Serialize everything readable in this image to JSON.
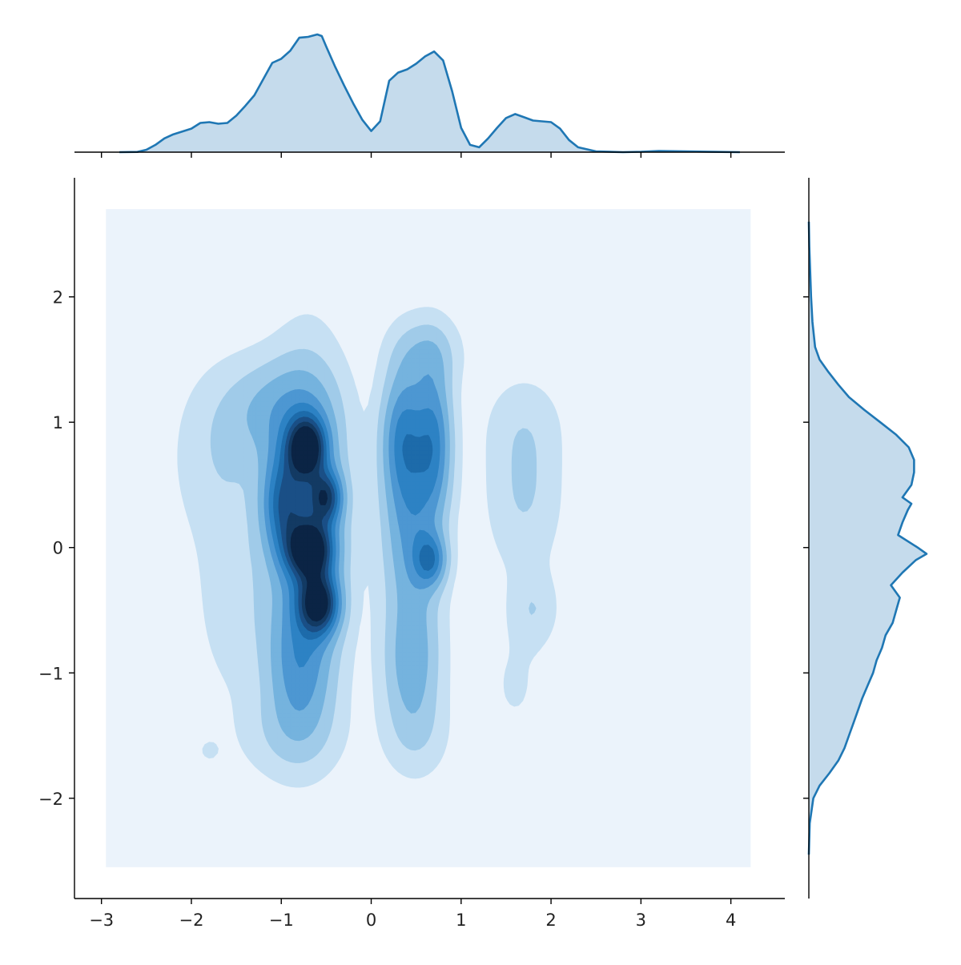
{
  "chart_data": {
    "type": "kde-jointplot",
    "title": "",
    "xlabel": "",
    "ylabel": "",
    "xlim": [
      -3.3,
      4.6
    ],
    "ylim": [
      -2.8,
      2.95
    ],
    "x_ticks": [
      -3,
      -2,
      -1,
      0,
      1,
      2,
      3,
      4
    ],
    "x_tick_labels": [
      "−3",
      "−2",
      "−1",
      "0",
      "1",
      "2",
      "3",
      "4"
    ],
    "y_ticks": [
      -2,
      -1,
      0,
      1,
      2
    ],
    "y_tick_labels": [
      "−2",
      "−1",
      "0",
      "1",
      "2"
    ],
    "grid": false,
    "legend": "none",
    "colors": {
      "line": "#1f77b4",
      "fill": "#c5dbec",
      "levels": [
        "#ebf3fb",
        "#c6e0f3",
        "#a0cbe9",
        "#75b3de",
        "#4d97d2",
        "#2d82c4",
        "#1d6baa",
        "#1a4f86",
        "#133a63",
        "#0b2445"
      ]
    },
    "joint_kde": {
      "background_extent": {
        "x": [
          -2.95,
          4.22
        ],
        "y": [
          -2.55,
          2.7
        ]
      },
      "components": [
        {
          "x": -0.72,
          "y": 0.8,
          "sx": 0.14,
          "sy": 0.16,
          "w": 1.0
        },
        {
          "x": -0.68,
          "y": -0.02,
          "sx": 0.17,
          "sy": 0.15,
          "w": 1.0
        },
        {
          "x": -0.58,
          "y": -0.45,
          "sx": 0.15,
          "sy": 0.16,
          "w": 0.95
        },
        {
          "x": -0.5,
          "y": 0.4,
          "sx": 0.12,
          "sy": 0.14,
          "w": 0.7
        },
        {
          "x": -0.98,
          "y": 0.35,
          "sx": 0.16,
          "sy": 0.28,
          "w": 0.55
        },
        {
          "x": -0.7,
          "y": 0.25,
          "sx": 0.28,
          "sy": 0.75,
          "w": 0.55
        },
        {
          "x": -0.8,
          "y": -0.95,
          "sx": 0.25,
          "sy": 0.4,
          "w": 0.4
        },
        {
          "x": -1.05,
          "y": 1.1,
          "sx": 0.4,
          "sy": 0.28,
          "w": 0.28
        },
        {
          "x": -1.7,
          "y": 0.7,
          "sx": 0.35,
          "sy": 0.45,
          "w": 0.13
        },
        {
          "x": -1.5,
          "y": -0.4,
          "sx": 0.3,
          "sy": 0.55,
          "w": 0.12
        },
        {
          "x": -0.9,
          "y": -1.5,
          "sx": 0.4,
          "sy": 0.25,
          "w": 0.12
        },
        {
          "x": 0.35,
          "y": 0.9,
          "sx": 0.16,
          "sy": 0.35,
          "w": 0.45
        },
        {
          "x": 0.7,
          "y": 0.85,
          "sx": 0.14,
          "sy": 0.4,
          "w": 0.5
        },
        {
          "x": 0.66,
          "y": -0.1,
          "sx": 0.12,
          "sy": 0.14,
          "w": 0.5
        },
        {
          "x": 0.45,
          "y": 0.2,
          "sx": 0.22,
          "sy": 0.6,
          "w": 0.45
        },
        {
          "x": 0.45,
          "y": -0.95,
          "sx": 0.22,
          "sy": 0.35,
          "w": 0.3
        },
        {
          "x": 0.5,
          "y": -1.5,
          "sx": 0.25,
          "sy": 0.25,
          "w": 0.12
        },
        {
          "x": 0.6,
          "y": 1.55,
          "sx": 0.25,
          "sy": 0.2,
          "w": 0.22
        },
        {
          "x": 1.7,
          "y": 0.45,
          "sx": 0.28,
          "sy": 0.45,
          "w": 0.17
        },
        {
          "x": 1.8,
          "y": -0.5,
          "sx": 0.18,
          "sy": 0.2,
          "w": 0.14
        },
        {
          "x": 1.6,
          "y": -1.1,
          "sx": 0.22,
          "sy": 0.3,
          "w": 0.07
        },
        {
          "x": 1.7,
          "y": 1.0,
          "sx": 0.3,
          "sy": 0.25,
          "w": 0.07
        },
        {
          "x": -1.8,
          "y": -1.62,
          "sx": 0.08,
          "sy": 0.06,
          "w": 0.08
        }
      ],
      "levels": [
        0.06,
        0.16,
        0.28,
        0.42,
        0.56,
        0.7,
        0.84,
        0.98,
        1.12
      ]
    },
    "x_marginal": {
      "x": [
        -2.8,
        -2.6,
        -2.5,
        -2.4,
        -2.3,
        -2.2,
        -2.0,
        -1.9,
        -1.8,
        -1.7,
        -1.6,
        -1.5,
        -1.4,
        -1.3,
        -1.2,
        -1.1,
        -1.0,
        -0.9,
        -0.8,
        -0.7,
        -0.6,
        -0.55,
        -0.5,
        -0.4,
        -0.3,
        -0.2,
        -0.1,
        0.0,
        0.1,
        0.2,
        0.3,
        0.4,
        0.5,
        0.6,
        0.7,
        0.8,
        0.9,
        1.0,
        1.1,
        1.2,
        1.3,
        1.4,
        1.5,
        1.6,
        1.7,
        1.8,
        1.9,
        2.0,
        2.1,
        2.2,
        2.3,
        2.5,
        2.8,
        3.0,
        3.2,
        3.5,
        3.8,
        4.1
      ],
      "density": [
        0.0,
        0.003,
        0.03,
        0.09,
        0.17,
        0.22,
        0.29,
        0.36,
        0.37,
        0.35,
        0.36,
        0.45,
        0.57,
        0.7,
        0.9,
        1.1,
        1.15,
        1.25,
        1.41,
        1.42,
        1.45,
        1.43,
        1.3,
        1.05,
        0.82,
        0.6,
        0.4,
        0.26,
        0.38,
        0.88,
        0.98,
        1.02,
        1.09,
        1.18,
        1.24,
        1.13,
        0.75,
        0.3,
        0.09,
        0.06,
        0.17,
        0.3,
        0.42,
        0.47,
        0.43,
        0.39,
        0.38,
        0.37,
        0.29,
        0.15,
        0.06,
        0.01,
        0.0,
        0.005,
        0.015,
        0.01,
        0.004,
        0.0
      ]
    },
    "y_marginal": {
      "y": [
        -2.45,
        -2.2,
        -2.0,
        -1.9,
        -1.8,
        -1.7,
        -1.6,
        -1.5,
        -1.4,
        -1.3,
        -1.2,
        -1.1,
        -1.0,
        -0.9,
        -0.8,
        -0.7,
        -0.6,
        -0.5,
        -0.4,
        -0.3,
        -0.2,
        -0.1,
        -0.05,
        0.0,
        0.1,
        0.2,
        0.3,
        0.35,
        0.4,
        0.5,
        0.6,
        0.7,
        0.8,
        0.9,
        1.0,
        1.1,
        1.2,
        1.3,
        1.4,
        1.5,
        1.6,
        1.8,
        2.0,
        2.2,
        2.4,
        2.6
      ],
      "density": [
        0.0,
        0.01,
        0.05,
        0.12,
        0.23,
        0.33,
        0.4,
        0.45,
        0.5,
        0.55,
        0.6,
        0.66,
        0.72,
        0.76,
        0.82,
        0.86,
        0.94,
        0.98,
        1.02,
        0.92,
        1.05,
        1.2,
        1.32,
        1.22,
        1.0,
        1.05,
        1.11,
        1.15,
        1.05,
        1.15,
        1.18,
        1.18,
        1.12,
        0.98,
        0.8,
        0.62,
        0.45,
        0.33,
        0.22,
        0.12,
        0.07,
        0.04,
        0.025,
        0.015,
        0.005,
        0.0
      ]
    }
  }
}
